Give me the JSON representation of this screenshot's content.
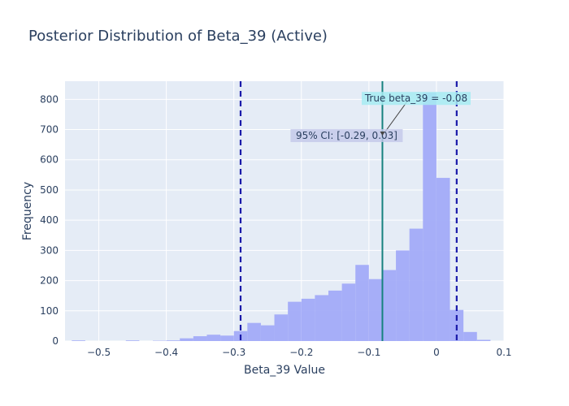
{
  "chart_data": {
    "type": "bar",
    "title": "Posterior Distribution of Beta_39 (Active)",
    "xlabel": "Beta_39 Value",
    "ylabel": "Frequency",
    "xlim": [
      -0.55,
      0.1
    ],
    "ylim": [
      0,
      860
    ],
    "xticks": [
      -0.5,
      -0.4,
      -0.3,
      -0.2,
      -0.1,
      0,
      0.1
    ],
    "xtick_labels": [
      "−0.5",
      "−0.4",
      "−0.3",
      "−0.2",
      "−0.1",
      "0",
      "0.1"
    ],
    "yticks": [
      0,
      100,
      200,
      300,
      400,
      500,
      600,
      700,
      800
    ],
    "bin_width": 0.02,
    "bin_starts": [
      -0.54,
      -0.52,
      -0.5,
      -0.48,
      -0.46,
      -0.44,
      -0.42,
      -0.4,
      -0.38,
      -0.36,
      -0.34,
      -0.32,
      -0.3,
      -0.28,
      -0.26,
      -0.24,
      -0.22,
      -0.2,
      -0.18,
      -0.16,
      -0.14,
      -0.12,
      -0.1,
      -0.08,
      -0.06,
      -0.04,
      -0.02,
      0.0,
      0.02,
      0.04,
      0.06
    ],
    "counts": [
      2,
      0,
      0,
      0,
      2,
      0,
      1,
      2,
      9,
      16,
      21,
      18,
      33,
      60,
      52,
      88,
      130,
      140,
      152,
      167,
      190,
      252,
      205,
      235,
      300,
      372,
      822,
      540,
      103,
      30,
      4
    ],
    "bar_color": "#a2abf8",
    "grid": true,
    "legend": "none",
    "ci_lines": [
      -0.29,
      0.03
    ],
    "ci_color": "#1a1aaa",
    "true_line": -0.08,
    "true_color": "#16827f",
    "annotations": {
      "true_label": "True beta_39 = -0.08",
      "true_bg": "#a7ecf2",
      "ci_label": "95% CI: [-0.29, 0.03]",
      "ci_bg": "#c3c8ea"
    }
  }
}
